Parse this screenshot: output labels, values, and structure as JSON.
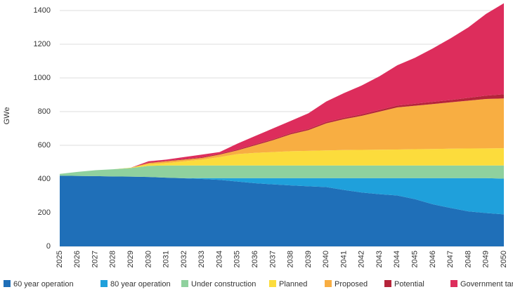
{
  "chart_data": {
    "type": "stacked_area",
    "y_label": "GWe",
    "categories": [
      "2025",
      "2026",
      "2027",
      "2028",
      "2029",
      "2030",
      "2031",
      "2032",
      "2033",
      "2034",
      "2035",
      "2036",
      "2037",
      "2038",
      "2039",
      "2040",
      "2041",
      "2042",
      "2043",
      "2044",
      "2045",
      "2046",
      "2047",
      "2048",
      "2049",
      "2050"
    ],
    "ylim": [
      0,
      1450
    ],
    "yticks": [
      0,
      200,
      400,
      600,
      800,
      1000,
      1200,
      1400
    ],
    "grid": true,
    "legend": "bottom",
    "series": [
      {
        "name": "60 year operation",
        "color": "#1f6fb8",
        "values": [
          420,
          418,
          417,
          415,
          414,
          412,
          408,
          404,
          400,
          395,
          385,
          375,
          368,
          362,
          357,
          352,
          335,
          320,
          310,
          302,
          280,
          250,
          228,
          208,
          198,
          190
        ]
      },
      {
        "name": "80 year operation",
        "color": "#1fa0db",
        "values": [
          0,
          0,
          0,
          0,
          0,
          0,
          0,
          1,
          5,
          10,
          20,
          30,
          37,
          43,
          48,
          53,
          70,
          85,
          95,
          103,
          125,
          155,
          177,
          197,
          207,
          212
        ]
      },
      {
        "name": "Under construction",
        "color": "#8fd19e",
        "values": [
          10,
          24,
          35,
          43,
          51,
          66,
          72,
          75,
          75,
          75,
          75,
          75,
          75,
          75,
          75,
          75,
          75,
          75,
          75,
          75,
          75,
          75,
          75,
          75,
          75,
          78
        ]
      },
      {
        "name": "Planned",
        "color": "#fcdc3c",
        "values": [
          0,
          0,
          0,
          0,
          2,
          10,
          15,
          25,
          35,
          50,
          68,
          75,
          80,
          85,
          87,
          90,
          92,
          93,
          94,
          95,
          97,
          98,
          100,
          101,
          102,
          103
        ]
      },
      {
        "name": "Proposed",
        "color": "#f8ae42",
        "values": [
          0,
          0,
          0,
          0,
          0,
          7,
          10,
          10,
          10,
          15,
          22,
          45,
          70,
          100,
          123,
          160,
          183,
          202,
          226,
          250,
          258,
          267,
          275,
          284,
          293,
          295
        ]
      },
      {
        "name": "Potential",
        "color": "#b5243a",
        "values": [
          0,
          0,
          0,
          0,
          0,
          3,
          3,
          4,
          4,
          5,
          5,
          6,
          6,
          7,
          7,
          8,
          8,
          9,
          10,
          11,
          12,
          13,
          14,
          17,
          20,
          25
        ]
      },
      {
        "name": "Government target",
        "color": "#dd2d5c",
        "values": [
          0,
          0,
          0,
          0,
          0,
          7,
          7,
          11,
          16,
          10,
          35,
          49,
          64,
          73,
          93,
          122,
          147,
          171,
          200,
          239,
          273,
          317,
          366,
          418,
          485,
          540
        ]
      }
    ]
  }
}
